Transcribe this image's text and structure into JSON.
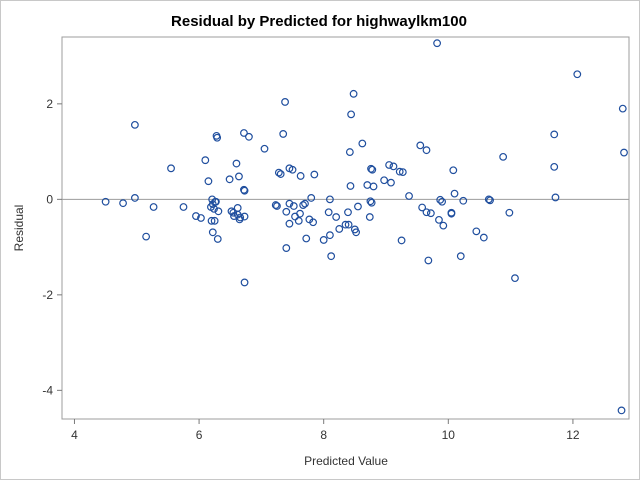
{
  "chart_data": {
    "type": "scatter",
    "title": "Residual by Predicted for highwaylkm100",
    "xlabel": "Predicted Value",
    "ylabel": "Residual",
    "xlim": [
      3.8,
      12.9
    ],
    "ylim": [
      -4.6,
      3.4
    ],
    "x_ticks": [
      4,
      6,
      8,
      10,
      12
    ],
    "y_ticks": [
      -4,
      -2,
      0,
      2
    ],
    "reference_line_y": 0,
    "marker_color": "#1f4e9e",
    "reference_line_color": "#9c9c9c",
    "grid": false,
    "points": [
      [
        4.5,
        -0.05
      ],
      [
        4.78,
        -0.08
      ],
      [
        4.97,
        1.56
      ],
      [
        4.97,
        0.03
      ],
      [
        5.15,
        -0.78
      ],
      [
        5.27,
        -0.16
      ],
      [
        5.55,
        0.65
      ],
      [
        5.75,
        -0.16
      ],
      [
        5.95,
        -0.35
      ],
      [
        6.03,
        -0.39
      ],
      [
        6.1,
        0.82
      ],
      [
        6.15,
        0.38
      ],
      [
        6.19,
        -0.16
      ],
      [
        6.2,
        -0.45
      ],
      [
        6.21,
        0.0
      ],
      [
        6.22,
        -0.1
      ],
      [
        6.24,
        -0.2
      ],
      [
        6.25,
        -0.45
      ],
      [
        6.27,
        -0.05
      ],
      [
        6.28,
        1.33
      ],
      [
        6.29,
        1.29
      ],
      [
        6.3,
        -0.83
      ],
      [
        6.31,
        -0.25
      ],
      [
        6.22,
        -0.69
      ],
      [
        6.26,
        -0.05
      ],
      [
        6.49,
        0.42
      ],
      [
        6.52,
        -0.25
      ],
      [
        6.55,
        -0.28
      ],
      [
        6.56,
        -0.35
      ],
      [
        6.6,
        0.75
      ],
      [
        6.62,
        -0.32
      ],
      [
        6.62,
        -0.18
      ],
      [
        6.66,
        -0.38
      ],
      [
        6.64,
        0.48
      ],
      [
        6.65,
        -0.42
      ],
      [
        6.72,
        1.39
      ],
      [
        6.72,
        0.2
      ],
      [
        6.73,
        0.18
      ],
      [
        6.73,
        -0.36
      ],
      [
        6.73,
        -1.74
      ],
      [
        6.8,
        1.31
      ],
      [
        7.05,
        1.06
      ],
      [
        7.23,
        -0.12
      ],
      [
        7.25,
        -0.14
      ],
      [
        7.28,
        0.56
      ],
      [
        7.31,
        0.53
      ],
      [
        7.35,
        1.37
      ],
      [
        7.38,
        2.04
      ],
      [
        7.4,
        -0.26
      ],
      [
        7.4,
        -1.02
      ],
      [
        7.45,
        0.65
      ],
      [
        7.45,
        -0.09
      ],
      [
        7.45,
        -0.51
      ],
      [
        7.5,
        0.62
      ],
      [
        7.52,
        -0.14
      ],
      [
        7.54,
        -0.36
      ],
      [
        7.6,
        -0.45
      ],
      [
        7.62,
        -0.3
      ],
      [
        7.63,
        0.49
      ],
      [
        7.67,
        -0.12
      ],
      [
        7.7,
        -0.09
      ],
      [
        7.72,
        -0.82
      ],
      [
        7.77,
        -0.42
      ],
      [
        7.8,
        0.03
      ],
      [
        7.83,
        -0.48
      ],
      [
        7.85,
        0.52
      ],
      [
        8.0,
        -0.85
      ],
      [
        8.08,
        -0.27
      ],
      [
        8.1,
        -0.75
      ],
      [
        8.1,
        0.0
      ],
      [
        8.12,
        -1.19
      ],
      [
        8.2,
        -0.37
      ],
      [
        8.25,
        -0.62
      ],
      [
        8.35,
        -0.53
      ],
      [
        8.39,
        -0.27
      ],
      [
        8.4,
        -0.53
      ],
      [
        8.42,
        0.99
      ],
      [
        8.43,
        0.28
      ],
      [
        8.44,
        1.78
      ],
      [
        8.48,
        2.21
      ],
      [
        8.5,
        -0.63
      ],
      [
        8.52,
        -0.69
      ],
      [
        8.55,
        -0.15
      ],
      [
        8.62,
        1.17
      ],
      [
        8.7,
        0.3
      ],
      [
        8.74,
        -0.37
      ],
      [
        8.75,
        -0.04
      ],
      [
        8.76,
        0.64
      ],
      [
        8.77,
        -0.07
      ],
      [
        8.78,
        0.62
      ],
      [
        8.8,
        0.27
      ],
      [
        8.97,
        0.4
      ],
      [
        9.05,
        0.72
      ],
      [
        9.08,
        0.35
      ],
      [
        9.12,
        0.69
      ],
      [
        9.22,
        0.58
      ],
      [
        9.25,
        -0.86
      ],
      [
        9.27,
        0.57
      ],
      [
        9.37,
        0.07
      ],
      [
        9.55,
        1.13
      ],
      [
        9.58,
        -0.17
      ],
      [
        9.65,
        1.03
      ],
      [
        9.65,
        -0.27
      ],
      [
        9.68,
        -1.28
      ],
      [
        9.72,
        -0.29
      ],
      [
        9.82,
        3.27
      ],
      [
        9.85,
        -0.43
      ],
      [
        9.87,
        -0.01
      ],
      [
        9.9,
        -0.05
      ],
      [
        9.92,
        -0.55
      ],
      [
        10.05,
        -0.28
      ],
      [
        10.05,
        -0.3
      ],
      [
        10.08,
        0.61
      ],
      [
        10.1,
        0.12
      ],
      [
        10.2,
        -1.19
      ],
      [
        10.24,
        -0.03
      ],
      [
        10.45,
        -0.67
      ],
      [
        10.57,
        -0.8
      ],
      [
        10.65,
        0.0
      ],
      [
        10.67,
        -0.02
      ],
      [
        10.88,
        0.89
      ],
      [
        10.98,
        -0.28
      ],
      [
        11.07,
        -1.65
      ],
      [
        11.7,
        1.36
      ],
      [
        11.7,
        0.68
      ],
      [
        11.72,
        0.04
      ],
      [
        12.07,
        2.62
      ],
      [
        12.8,
        1.9
      ],
      [
        12.82,
        0.98
      ],
      [
        12.78,
        -4.42
      ]
    ]
  }
}
